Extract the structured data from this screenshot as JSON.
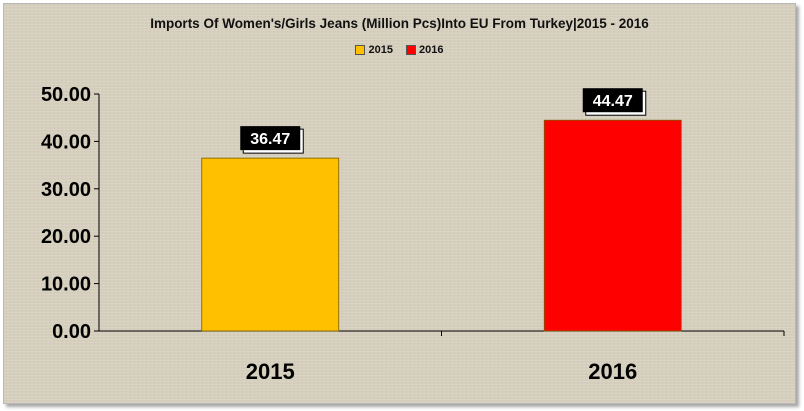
{
  "chart_data": {
    "type": "bar",
    "title": "Imports Of Women's/Girls Jeans (Million Pcs)Into EU From Turkey|2015 - 2016",
    "categories": [
      "2015",
      "2016"
    ],
    "values": [
      36.47,
      44.47
    ],
    "data_labels": [
      "36.47",
      "44.47"
    ],
    "colors": [
      "#ffc000",
      "#ff0000"
    ],
    "legend": [
      {
        "name": "2015",
        "color": "#ffc000"
      },
      {
        "name": "2016",
        "color": "#ff0000"
      }
    ],
    "legend_position": "top",
    "ylim": [
      0,
      50
    ],
    "yticks": [
      "0.00",
      "10.00",
      "20.00",
      "30.00",
      "40.00",
      "50.00"
    ],
    "ytick_values": [
      0,
      10,
      20,
      30,
      40,
      50
    ],
    "xlabel": "",
    "ylabel": "",
    "grid": false
  }
}
